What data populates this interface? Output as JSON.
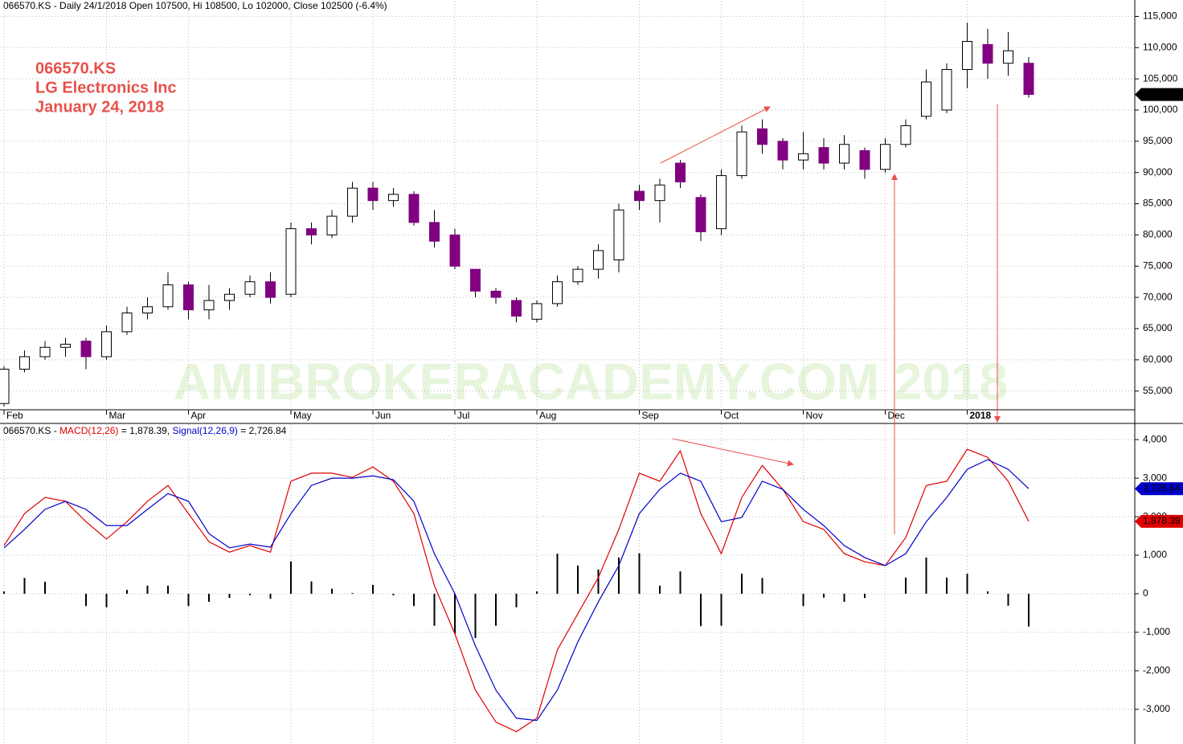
{
  "chart_data": [
    {
      "type": "candlestick",
      "header": "066570.KS - Daily 24/1/2018 Open 107500, Hi 108500, Lo 102000, Close 102500 (-6.4%)",
      "annotations": [
        "066570.KS",
        "LG Electronics Inc",
        "January 24, 2018"
      ],
      "watermark": "AMIBROKERACADEMY.COM  2018",
      "categories": [
        "Feb",
        null,
        null,
        null,
        null,
        "Mar",
        null,
        null,
        null,
        "Apr",
        null,
        null,
        null,
        null,
        "May",
        null,
        null,
        null,
        "Jun",
        null,
        null,
        null,
        "Jul",
        null,
        null,
        null,
        "Aug",
        null,
        null,
        null,
        null,
        "Sep",
        null,
        null,
        null,
        "Oct",
        null,
        null,
        null,
        "Nov",
        null,
        null,
        null,
        "Dec",
        null,
        null,
        null,
        "2018",
        null,
        null,
        null
      ],
      "open": [
        53000,
        58500,
        60500,
        62000,
        63000,
        60500,
        64500,
        67500,
        68500,
        72000,
        68000,
        69500,
        70500,
        72500,
        70500,
        81000,
        80000,
        83000,
        87500,
        85500,
        86500,
        82000,
        80000,
        74500,
        71000,
        69500,
        66500,
        69000,
        72500,
        74500,
        76000,
        87000,
        85500,
        91500,
        86000,
        81000,
        89500,
        97000,
        95000,
        92000,
        94000,
        91500,
        93500,
        90500,
        94500,
        99000,
        100000,
        106500,
        110500,
        107500,
        107500
      ],
      "high": [
        59000,
        61500,
        63000,
        63500,
        63500,
        65500,
        68500,
        70000,
        74000,
        72500,
        72000,
        71500,
        73500,
        74000,
        82000,
        82000,
        84000,
        88500,
        88500,
        87500,
        87000,
        84000,
        81000,
        74000,
        71500,
        70000,
        69500,
        73500,
        75000,
        78500,
        85000,
        88000,
        89000,
        92000,
        86500,
        90500,
        97500,
        98500,
        95500,
        96500,
        95500,
        96000,
        94000,
        95500,
        98500,
        106500,
        107500,
        114000,
        113000,
        112500,
        108500
      ],
      "low": [
        52500,
        58000,
        60000,
        60500,
        58500,
        60000,
        64000,
        66500,
        68000,
        66500,
        66500,
        68000,
        70000,
        69000,
        70000,
        78500,
        79500,
        82000,
        84000,
        84500,
        81500,
        78000,
        74500,
        70000,
        69000,
        66000,
        66000,
        68500,
        72000,
        73000,
        74000,
        84000,
        82000,
        87500,
        79000,
        80000,
        89000,
        93000,
        90500,
        90500,
        90500,
        90500,
        89000,
        90000,
        94000,
        98500,
        99500,
        103500,
        105000,
        105500,
        102000
      ],
      "close": [
        58500,
        60500,
        62000,
        62500,
        60500,
        64500,
        67500,
        68500,
        72000,
        68000,
        69500,
        70500,
        72500,
        70000,
        81000,
        80000,
        83000,
        87500,
        85500,
        86500,
        82000,
        79000,
        75000,
        71000,
        70000,
        67000,
        69000,
        72500,
        74500,
        77500,
        84000,
        85500,
        88000,
        88500,
        80500,
        89500,
        96500,
        94500,
        92000,
        93000,
        91500,
        94500,
        90500,
        94500,
        97500,
        104500,
        106500,
        111000,
        107500,
        109500,
        102500
      ],
      "up_color": "#ffffff",
      "down_color": "#800080",
      "last_label": "102,500",
      "ylim": [
        52000,
        117500
      ],
      "yticks": [
        {
          "value": 55000,
          "label": "55,000"
        },
        {
          "value": 60000,
          "label": "60,000"
        },
        {
          "value": 65000,
          "label": "65,000"
        },
        {
          "value": 70000,
          "label": "70,000"
        },
        {
          "value": 75000,
          "label": "75,000"
        },
        {
          "value": 80000,
          "label": "80,000"
        },
        {
          "value": 85000,
          "label": "85,000"
        },
        {
          "value": 90000,
          "label": "90,000"
        },
        {
          "value": 95000,
          "label": "95,000"
        },
        {
          "value": 100000,
          "label": "100,000"
        },
        {
          "value": 105000,
          "label": "105,000"
        },
        {
          "value": 110000,
          "label": "110,000"
        },
        {
          "value": 115000,
          "label": "115,000"
        }
      ],
      "grid": true
    },
    {
      "type": "macd",
      "title": "066570.KS -",
      "series": [
        {
          "name": "MACD(12,26)",
          "color": "#e00000",
          "readout": "= 1,878.39,",
          "last_label": "1,878.39",
          "values": [
            1250,
            2080,
            2500,
            2400,
            1870,
            1420,
            1870,
            2400,
            2810,
            2080,
            1350,
            1080,
            1250,
            1080,
            2920,
            3130,
            3130,
            3020,
            3290,
            2920,
            2080,
            210,
            -1040,
            -2500,
            -3330,
            -3580,
            -3230,
            -1460,
            -520,
            420,
            1670,
            3130,
            2920,
            3710,
            2080,
            1040,
            2500,
            3330,
            2710,
            1870,
            1670,
            1040,
            830,
            730,
            1460,
            2810,
            2920,
            3750,
            3540,
            2920,
            1878.39
          ]
        },
        {
          "name": "Signal(12,26,9)",
          "color": "#0000cc",
          "readout": "= 2,726.84",
          "last_label": "2,726.84",
          "values": [
            1190,
            1670,
            2190,
            2400,
            2190,
            1770,
            1770,
            2190,
            2600,
            2400,
            1560,
            1190,
            1290,
            1210,
            2080,
            2810,
            3000,
            3000,
            3060,
            2960,
            2400,
            1040,
            0,
            -1350,
            -2500,
            -3230,
            -3290,
            -2500,
            -1250,
            -210,
            730,
            2080,
            2710,
            3130,
            2920,
            1870,
            1980,
            2920,
            2710,
            2190,
            1770,
            1250,
            940,
            730,
            1040,
            1870,
            2500,
            3230,
            3480,
            3230,
            2726.84
          ]
        }
      ],
      "histogram": {
        "color": "#000000",
        "values": [
          60,
          410,
          310,
          0,
          -320,
          -350,
          100,
          210,
          210,
          -320,
          -210,
          -110,
          -40,
          -130,
          840,
          320,
          130,
          20,
          230,
          -40,
          -320,
          -830,
          -1040,
          -1150,
          -830,
          -350,
          60,
          1040,
          730,
          630,
          940,
          1050,
          210,
          580,
          -840,
          -830,
          520,
          410,
          0,
          -320,
          -100,
          -210,
          -110,
          0,
          420,
          940,
          420,
          520,
          60,
          -310,
          -848.45
        ]
      },
      "ylim": [
        -3900,
        4400
      ],
      "yticks": [
        {
          "value": -3000,
          "label": "-3,000"
        },
        {
          "value": -2000,
          "label": "-2,000"
        },
        {
          "value": -1000,
          "label": "-1,000"
        },
        0,
        {
          "value": 1000,
          "label": "1,000"
        },
        {
          "value": 2000,
          "label": "2,000"
        },
        {
          "value": 3000,
          "label": "3,000"
        },
        {
          "value": 4000,
          "label": "4,000"
        }
      ],
      "grid": true
    }
  ]
}
